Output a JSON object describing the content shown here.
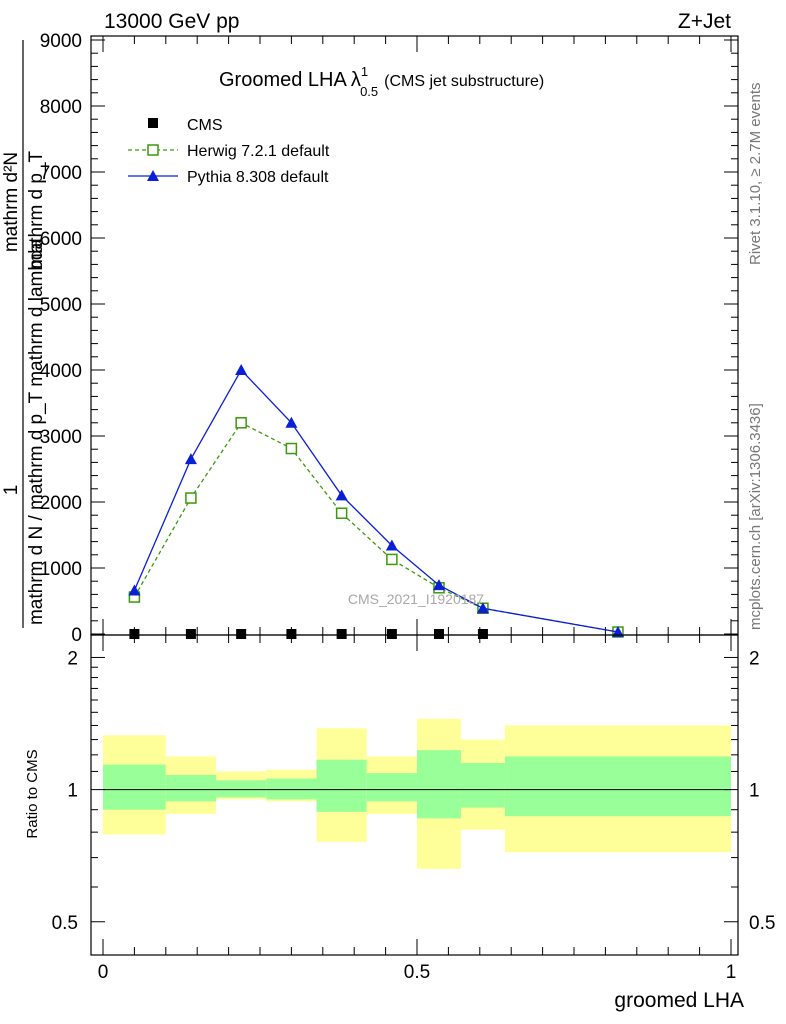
{
  "header": {
    "left": "13000 GeV pp",
    "right": "Z+Jet"
  },
  "side_labels": {
    "rivet": "Rivet 3.1.10, ≥ 2.7M events",
    "mcplots": "mcplots.cern.ch [arXiv:1306.3436]"
  },
  "watermark": "CMS_2021_I1920187",
  "chart_data": [
    {
      "type": "line",
      "panel": "main",
      "title_main": "Groomed LHA",
      "title_lambda": "λ",
      "title_sup": "1",
      "title_sub": "0.5",
      "title_note": "(CMS jet substructure)",
      "ylabel_numerator": "1",
      "ylabel_fraction_top": "mathrm d²N",
      "ylabel_fraction_mid": "mathrm d N / mathrm d p_T mathrm d lambda",
      "ylabel_fraction_bottom": "mathrm d p_T",
      "xlabel": "",
      "ylim": [
        0,
        9000
      ],
      "y_ticks": [
        0,
        1000,
        2000,
        3000,
        4000,
        5000,
        6000,
        7000,
        8000,
        9000
      ],
      "y_tick_labels": [
        "0",
        "1000",
        "2000",
        "3000",
        "4000",
        "5000",
        "6000",
        "7000",
        "8000",
        "9000"
      ],
      "legend_position": "top-left",
      "series": [
        {
          "name": "CMS",
          "style": "filled-square-marker",
          "color": "#000000",
          "x": [
            0.05,
            0.14,
            0.22,
            0.3,
            0.38,
            0.46,
            0.535,
            0.605
          ],
          "y": [
            0,
            0,
            0,
            0,
            0,
            0,
            0,
            0
          ]
        },
        {
          "name": "Herwig 7.2.1 default",
          "style": "dashed-line-open-square",
          "color": "#3a9a0b",
          "x": [
            0.05,
            0.14,
            0.22,
            0.3,
            0.38,
            0.46,
            0.535,
            0.605,
            0.82
          ],
          "y": [
            560,
            2060,
            3200,
            2810,
            1830,
            1130,
            700,
            390,
            30
          ]
        },
        {
          "name": "Pythia 8.308 default",
          "style": "solid-line-filled-triangle",
          "color": "#0a1fd6",
          "x": [
            0.05,
            0.14,
            0.22,
            0.3,
            0.38,
            0.46,
            0.535,
            0.605,
            0.82
          ],
          "y": [
            660,
            2650,
            4000,
            3200,
            2100,
            1340,
            740,
            390,
            30
          ]
        }
      ]
    },
    {
      "type": "area",
      "panel": "ratio",
      "ylabel": "Ratio to CMS",
      "xlabel": "groomed LHA",
      "xlim": [
        0,
        1
      ],
      "x_ticks": [
        0,
        0.5,
        1
      ],
      "x_tick_labels": [
        "0",
        "0.5",
        "1"
      ],
      "ylim": [
        0.42,
        2.25
      ],
      "y_ticks": [
        0.5,
        1,
        2
      ],
      "y_tick_labels": [
        "0.5",
        "1",
        "2"
      ],
      "reference_line": 1,
      "band_colors": {
        "inner": "#99ff99",
        "outer": "#ffff99"
      },
      "bins": [
        {
          "x0": 0.0,
          "x1": 0.1,
          "inner": [
            0.9,
            1.14
          ],
          "outer": [
            0.79,
            1.33
          ]
        },
        {
          "x0": 0.1,
          "x1": 0.18,
          "inner": [
            0.94,
            1.08
          ],
          "outer": [
            0.88,
            1.19
          ]
        },
        {
          "x0": 0.18,
          "x1": 0.26,
          "inner": [
            0.96,
            1.05
          ],
          "outer": [
            0.95,
            1.1
          ]
        },
        {
          "x0": 0.26,
          "x1": 0.34,
          "inner": [
            0.95,
            1.06
          ],
          "outer": [
            0.94,
            1.11
          ]
        },
        {
          "x0": 0.34,
          "x1": 0.42,
          "inner": [
            0.89,
            1.17
          ],
          "outer": [
            0.76,
            1.38
          ]
        },
        {
          "x0": 0.42,
          "x1": 0.5,
          "inner": [
            0.94,
            1.09
          ],
          "outer": [
            0.88,
            1.19
          ]
        },
        {
          "x0": 0.5,
          "x1": 0.57,
          "inner": [
            0.86,
            1.23
          ],
          "outer": [
            0.66,
            1.45
          ]
        },
        {
          "x0": 0.57,
          "x1": 0.64,
          "inner": [
            0.91,
            1.15
          ],
          "outer": [
            0.81,
            1.3
          ]
        },
        {
          "x0": 0.64,
          "x1": 1.0,
          "inner": [
            0.87,
            1.19
          ],
          "outer": [
            0.72,
            1.4
          ]
        }
      ]
    }
  ]
}
